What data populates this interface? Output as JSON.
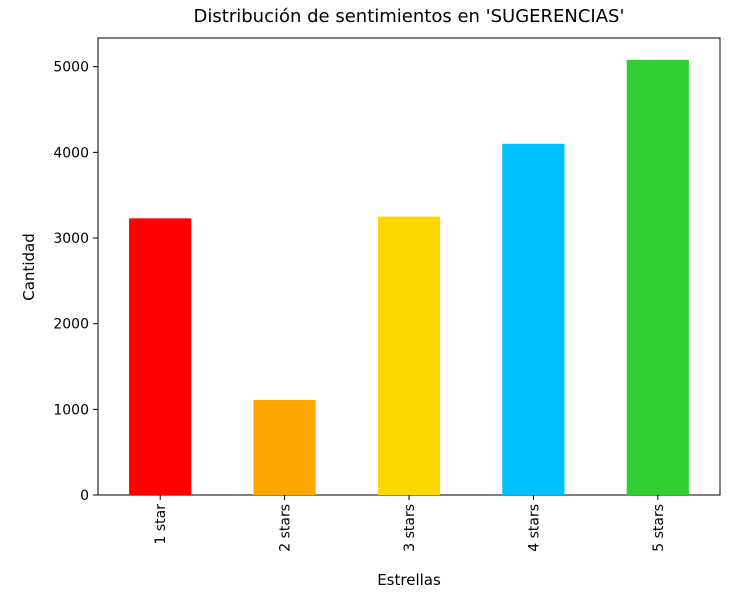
{
  "chart_data": {
    "type": "bar",
    "title": "Distribución de sentimientos en 'SUGERENCIAS'",
    "xlabel": "Estrellas",
    "ylabel": "Cantidad",
    "categories": [
      "1 star",
      "2 stars",
      "3 stars",
      "4 stars",
      "5 stars"
    ],
    "values": [
      3230,
      1110,
      3250,
      4100,
      5080
    ],
    "colors": [
      "#ff0000",
      "#ffa500",
      "#ffd700",
      "#00bfff",
      "#32cd32"
    ],
    "ylim": [
      0,
      5335
    ],
    "yticks": [
      0,
      1000,
      2000,
      3000,
      4000,
      5000
    ],
    "ytick_labels": [
      "0",
      "1000",
      "2000",
      "3000",
      "4000",
      "5000"
    ],
    "grid": false,
    "legend": "none"
  }
}
